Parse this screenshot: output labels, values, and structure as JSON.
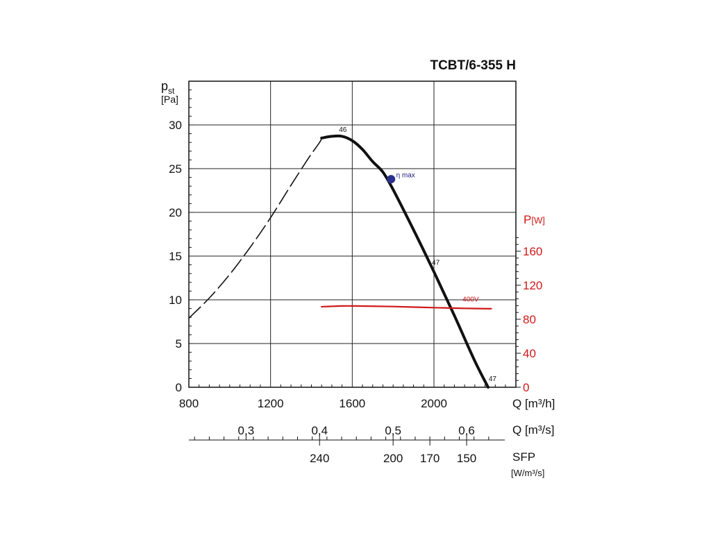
{
  "chart_data": {
    "type": "line",
    "title": "TCBT/6-355 H",
    "ylabel": {
      "symbol": "p",
      "subscript": "st",
      "unit": "[Pa]"
    },
    "y2label": {
      "symbol": "P",
      "unit": "[W]"
    },
    "xlabel": "Q [m³/h]",
    "x_axis2_label": "Q [m³/s]",
    "x_axis3_label": {
      "line1": "SFP",
      "line2": "[W/m³/s]"
    },
    "xlim": [
      800,
      2400
    ],
    "ylim": [
      0,
      30
    ],
    "y2lim": [
      0,
      180
    ],
    "x_ticks": [
      800,
      1200,
      1600,
      2000
    ],
    "y_ticks": [
      0,
      5,
      10,
      15,
      20,
      25,
      30
    ],
    "y2_ticks": [
      0,
      40,
      80,
      120,
      160
    ],
    "y_tick_labels": [
      "0",
      "5",
      "10",
      "15",
      "20",
      "25",
      "30"
    ],
    "x_tick_labels": [
      "800",
      "1200",
      "1600",
      "2000"
    ],
    "y2_tick_labels": [
      "0",
      "40",
      "80",
      "120",
      "160"
    ],
    "qs_ticks": [
      {
        "value": 0.3,
        "label": "0,3"
      },
      {
        "value": 0.4,
        "label": "0,4"
      },
      {
        "value": 0.5,
        "label": "0,5"
      },
      {
        "value": 0.6,
        "label": "0,6"
      }
    ],
    "sfp_ticks": [
      {
        "q": 0.4,
        "label": "240"
      },
      {
        "q": 0.5,
        "label": "200"
      },
      {
        "q": 0.55,
        "label": "170"
      },
      {
        "q": 0.6,
        "label": "150"
      }
    ],
    "series": [
      {
        "style": "dashed",
        "color": "#111111",
        "points": [
          [
            800,
            7.9
          ],
          [
            900,
            10.2
          ],
          [
            1000,
            12.9
          ],
          [
            1100,
            16.0
          ],
          [
            1200,
            19.4
          ],
          [
            1300,
            23.1
          ],
          [
            1380,
            26.0
          ],
          [
            1440,
            28.0
          ],
          [
            1450,
            28.5
          ]
        ]
      },
      {
        "style": "solid",
        "color": "#111111",
        "points": [
          [
            1450,
            28.5
          ],
          [
            1500,
            28.7
          ],
          [
            1550,
            28.7
          ],
          [
            1600,
            28.2
          ],
          [
            1650,
            27.2
          ],
          [
            1700,
            25.8
          ],
          [
            1750,
            24.6
          ],
          [
            1800,
            22.6
          ],
          [
            1900,
            18.0
          ],
          [
            2000,
            13.2
          ],
          [
            2100,
            8.2
          ],
          [
            2200,
            3.0
          ],
          [
            2265,
            0.0
          ]
        ]
      },
      {
        "name": "400V",
        "axis": "y2",
        "color": "#d01818",
        "points": [
          [
            1450,
            94.7
          ],
          [
            1550,
            95.6
          ],
          [
            1650,
            95.5
          ],
          [
            1800,
            94.9
          ],
          [
            2000,
            93.6
          ],
          [
            2150,
            92.8
          ],
          [
            2280,
            92.3
          ]
        ]
      }
    ],
    "annotations": [
      {
        "text": "46",
        "x": 1535,
        "y": 29.2
      },
      {
        "text": "η max",
        "x": 1815,
        "y": 24.0,
        "color": "#1b1f7a"
      },
      {
        "text": "47",
        "x": 1990,
        "y": 14.0
      },
      {
        "text": "400V",
        "x": 2140,
        "y": 9.8,
        "color": "#d01818"
      },
      {
        "text": "47",
        "x": 2268,
        "y": 0.7
      }
    ],
    "eta_max_point": {
      "x": 1790,
      "y": 23.8,
      "color": "#2b2f8c"
    },
    "grid": true
  }
}
